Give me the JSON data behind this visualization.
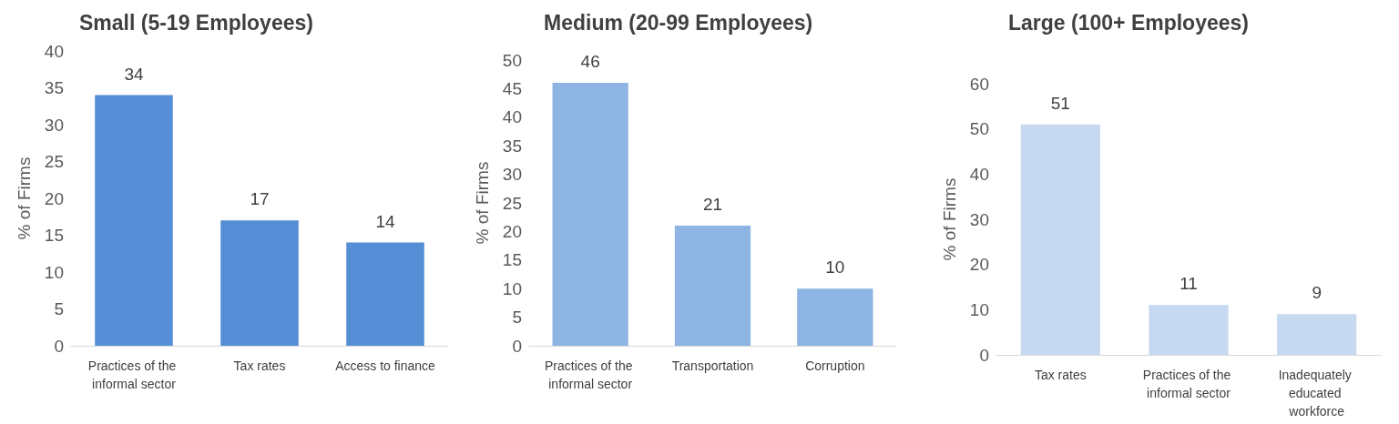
{
  "chart_data": [
    {
      "type": "bar",
      "title": "Small (5-19 Employees)",
      "ylabel": "% of Firms",
      "categories": [
        "Practices of the informal sector",
        "Tax rates",
        "Access to finance"
      ],
      "values": [
        34,
        17,
        14
      ],
      "color": "#558ed5",
      "ylim": [
        0,
        40
      ],
      "yticks": [
        0,
        5,
        10,
        15,
        20,
        25,
        30,
        35,
        40
      ],
      "data_labels": true
    },
    {
      "type": "bar",
      "title": "Medium (20-99 Employees)",
      "ylabel": "% of Firms",
      "categories": [
        "Practices of the informal sector",
        "Transportation",
        "Corruption"
      ],
      "values": [
        46,
        21,
        10
      ],
      "color": "#8eb4e3",
      "ylim": [
        0,
        50
      ],
      "yticks": [
        0,
        5,
        10,
        15,
        20,
        25,
        30,
        35,
        40,
        45,
        50
      ],
      "data_labels": true
    },
    {
      "type": "bar",
      "title": "Large (100+ Employees)",
      "ylabel": "% of Firms",
      "categories": [
        "Tax rates",
        "Practices of the informal sector",
        "Inadequately educated workforce"
      ],
      "values": [
        51,
        11,
        9
      ],
      "color": "#c6d9f1",
      "ylim": [
        0,
        60
      ],
      "yticks": [
        0,
        10,
        20,
        30,
        40,
        50,
        60
      ],
      "data_labels": true
    }
  ]
}
